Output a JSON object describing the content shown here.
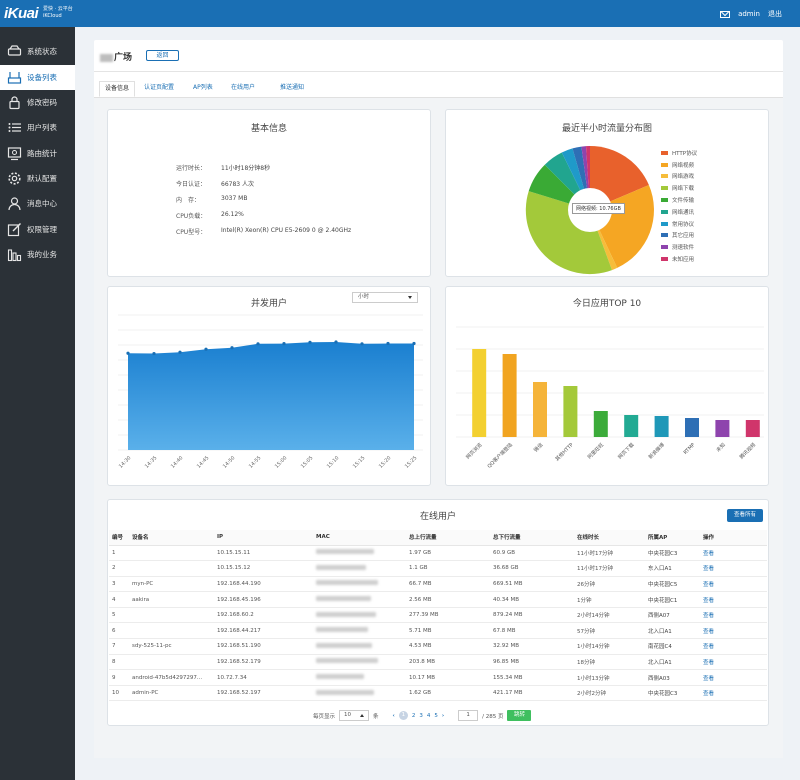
{
  "topbar": {
    "logo": "iKuai",
    "logo_sub_1": "爱快 · 云平台",
    "logo_sub_2": "iKCloud",
    "user": "admin",
    "logout": "退出"
  },
  "sidebar": {
    "items": [
      {
        "label": "系统状态",
        "icon": "router-status-icon"
      },
      {
        "label": "设备列表",
        "icon": "device-list-icon"
      },
      {
        "label": "修改密码",
        "icon": "lock-icon"
      },
      {
        "label": "用户列表",
        "icon": "list-icon"
      },
      {
        "label": "路由统计",
        "icon": "monitor-icon"
      },
      {
        "label": "默认配置",
        "icon": "gear-icon"
      },
      {
        "label": "消息中心",
        "icon": "user-icon"
      },
      {
        "label": "权限管理",
        "icon": "edit-icon"
      },
      {
        "label": "我的业务",
        "icon": "bar-chart-icon"
      }
    ],
    "active_index": 1
  },
  "header": {
    "title": "广场",
    "return_label": "返回"
  },
  "tabs": [
    {
      "label": "设备信息",
      "active": true
    },
    {
      "label": "认证页配置",
      "active": false
    },
    {
      "label": "AP列表",
      "active": false
    },
    {
      "label": "在线用户",
      "active": false
    },
    {
      "label": "推送通知",
      "active": false
    }
  ],
  "basic_info": {
    "title": "基本信息",
    "rows": [
      {
        "key": "运行时长：",
        "value": "11小时18分钟8秒"
      },
      {
        "key": "今日认证：",
        "value": "66783 人次"
      },
      {
        "key": "内　存：",
        "value": "3037 MB"
      },
      {
        "key": "CPU负载：",
        "value": "26.12%"
      },
      {
        "key": "CPU型号：",
        "value": "Intel(R) Xeon(R) CPU E5-2609 0 @ 2.40GHz"
      }
    ]
  },
  "traffic": {
    "title": "最近半小时流量分布图",
    "tooltip": "网络视频: 10.76GB",
    "legend": [
      {
        "label": "HTTP协议",
        "color": "#e8612c"
      },
      {
        "label": "网络视频",
        "color": "#f5a623"
      },
      {
        "label": "网络游戏",
        "color": "#f6bd3a"
      },
      {
        "label": "网络下载",
        "color": "#a3c93a"
      },
      {
        "label": "文件传输",
        "color": "#3aaa35"
      },
      {
        "label": "网络通讯",
        "color": "#21a58f"
      },
      {
        "label": "常用协议",
        "color": "#1f9ac9"
      },
      {
        "label": "其它应用",
        "color": "#2e6fb5"
      },
      {
        "label": "测速软件",
        "color": "#8e44ad"
      },
      {
        "label": "未知应用",
        "color": "#d0356b"
      }
    ]
  },
  "chart_data": [
    {
      "type": "area",
      "title": "并发用户",
      "x": [
        "14:30",
        "14:35",
        "14:40",
        "14:45",
        "14:50",
        "14:55",
        "15:00",
        "15:05",
        "15:10",
        "15:15",
        "15:20",
        "15:25"
      ],
      "values": [
        6450,
        6430,
        6520,
        6720,
        6820,
        7080,
        7090,
        7180,
        7200,
        7080,
        7100,
        7100
      ],
      "ylim": [
        0,
        9000
      ],
      "color": "#1a7fd0",
      "select": "小时"
    },
    {
      "type": "bar",
      "title": "今日应用TOP 10",
      "categories": [
        "网页浏览",
        "QQ客户端登陆",
        "微信",
        "其他HTTP",
        "阿里旺旺",
        "网页下载",
        "新浪微博",
        "RTMP",
        "未知",
        "腾讯视频"
      ],
      "values": [
        88,
        83,
        55,
        51,
        26,
        22,
        21,
        19,
        17,
        17
      ],
      "ylim": [
        0,
        110
      ],
      "colors": [
        "#f3d030",
        "#f1a420",
        "#f5b43a",
        "#a4c93a",
        "#3cab3a",
        "#22aa93",
        "#1f98b8",
        "#2e6fb5",
        "#8e44ad",
        "#d0356b"
      ]
    }
  ],
  "online_users": {
    "title": "在线用户",
    "view_all": "查看所有",
    "columns": [
      "编号",
      "设备名",
      "IP",
      "MAC",
      "总上行流量",
      "总下行流量",
      "在线时长",
      "所属AP",
      "操作"
    ],
    "rows": [
      [
        "1",
        "",
        "10.15.15.11",
        "",
        "1.97 GB",
        "60.9 GB",
        "11小时17分钟",
        "中央花园C3",
        "查看"
      ],
      [
        "2",
        "",
        "10.15.15.12",
        "",
        "1.1 GB",
        "36.68 GB",
        "11小时17分钟",
        "东入口A1",
        "查看"
      ],
      [
        "3",
        "myn-PC",
        "192.168.44.190",
        "",
        "66.7 MB",
        "669.51 MB",
        "26分钟",
        "中央花园C5",
        "查看"
      ],
      [
        "4",
        "aakira",
        "192.168.45.196",
        "",
        "2.56 MB",
        "40.34 MB",
        "1分钟",
        "中央花园C1",
        "查看"
      ],
      [
        "5",
        "",
        "192.168.60.2",
        "",
        "277.39 MB",
        "879.24 MB",
        "2小时14分钟",
        "西侧A07",
        "查看"
      ],
      [
        "6",
        "",
        "192.168.44.217",
        "",
        "5.71 MB",
        "67.8 MB",
        "57分钟",
        "北入口A1",
        "查看"
      ],
      [
        "7",
        "sdy-525-11-pc",
        "192.168.51.190",
        "",
        "4.53 MB",
        "32.92 MB",
        "1小时14分钟",
        "南花园C4",
        "查看"
      ],
      [
        "8",
        "",
        "192.168.52.179",
        "",
        "203.8 MB",
        "96.85 MB",
        "18分钟",
        "北入口A1",
        "查看"
      ],
      [
        "9",
        "android-47b5d4297297...",
        "10.72.7.34",
        "",
        "10.17 MB",
        "155.34 MB",
        "1小时13分钟",
        "西侧A03",
        "查看"
      ],
      [
        "10",
        "admin-PC",
        "192.168.52.197",
        "",
        "1.62 GB",
        "421.17 MB",
        "2小时2分钟",
        "中央花园C3",
        "查看"
      ]
    ],
    "pager": {
      "per_page_label": "每页显示",
      "per_page": "10",
      "unit": "条",
      "pages": [
        "1",
        "2",
        "3",
        "4",
        "5"
      ],
      "input": "1",
      "total": "/ 285 页",
      "go": "跳转"
    }
  }
}
